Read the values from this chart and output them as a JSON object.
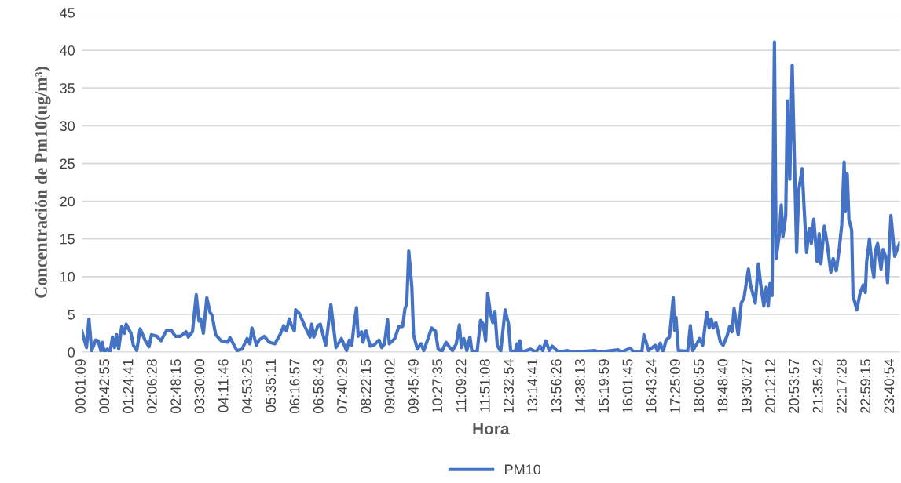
{
  "chart_data": {
    "type": "line",
    "xlabel": "Hora",
    "ylabel": "Concentración de Pm10(ug/m³)",
    "legend": "bottom",
    "grid": "y",
    "marker": "none",
    "line_style": "solid",
    "xlim": [
      0.0192,
      23.96
    ],
    "ylim": [
      0,
      45
    ],
    "yticks": [
      0,
      5,
      10,
      15,
      20,
      25,
      30,
      35,
      40,
      45
    ],
    "xticks": [
      {
        "value": 0.0192,
        "label": "00:01:09"
      },
      {
        "value": 0.7153,
        "label": "00:42:55"
      },
      {
        "value": 1.4114,
        "label": "01:24:41"
      },
      {
        "value": 2.1078,
        "label": "02:06:28"
      },
      {
        "value": 2.8042,
        "label": "02:48:15"
      },
      {
        "value": 3.5,
        "label": "03:30:00"
      },
      {
        "value": 4.1961,
        "label": "04:11:46"
      },
      {
        "value": 4.8903,
        "label": "04:53:25"
      },
      {
        "value": 5.5864,
        "label": "05:35:11"
      },
      {
        "value": 6.2825,
        "label": "06:16:57"
      },
      {
        "value": 6.9786,
        "label": "06:58:43"
      },
      {
        "value": 7.6747,
        "label": "07:40:29"
      },
      {
        "value": 8.3708,
        "label": "08:22:15"
      },
      {
        "value": 9.0672,
        "label": "09:04:02"
      },
      {
        "value": 9.7636,
        "label": "09:45:49"
      },
      {
        "value": 10.4597,
        "label": "10:27:35"
      },
      {
        "value": 11.1561,
        "label": "11:09:22"
      },
      {
        "value": 11.8522,
        "label": "11:51:08"
      },
      {
        "value": 12.5483,
        "label": "12:32:54"
      },
      {
        "value": 13.2447,
        "label": "13:14:41"
      },
      {
        "value": 13.9406,
        "label": "13:56:26"
      },
      {
        "value": 14.6369,
        "label": "14:38:13"
      },
      {
        "value": 15.3331,
        "label": "15:19:59"
      },
      {
        "value": 16.0292,
        "label": "16:01:45"
      },
      {
        "value": 16.7233,
        "label": "16:43:24"
      },
      {
        "value": 17.4192,
        "label": "17:25:09"
      },
      {
        "value": 18.1153,
        "label": "18:06:55"
      },
      {
        "value": 18.8111,
        "label": "18:48:40"
      },
      {
        "value": 19.5075,
        "label": "19:30:27"
      },
      {
        "value": 20.2033,
        "label": "20:12:12"
      },
      {
        "value": 20.8992,
        "label": "20:53:57"
      },
      {
        "value": 21.595,
        "label": "21:35:42"
      },
      {
        "value": 22.2911,
        "label": "22:17:28"
      },
      {
        "value": 22.9875,
        "label": "22:59:15"
      },
      {
        "value": 23.6817,
        "label": "23:40:54"
      }
    ],
    "series": [
      {
        "name": "PM10",
        "color": "#4472c4",
        "x": [
          0.02,
          0.16,
          0.23,
          0.31,
          0.43,
          0.5,
          0.58,
          0.62,
          0.68,
          0.77,
          0.85,
          0.92,
          0.98,
          1.04,
          1.1,
          1.19,
          1.27,
          1.32,
          1.46,
          1.53,
          1.63,
          1.73,
          1.88,
          1.99,
          2.06,
          2.22,
          2.34,
          2.49,
          2.64,
          2.76,
          2.91,
          3.07,
          3.14,
          3.26,
          3.37,
          3.45,
          3.5,
          3.58,
          3.68,
          3.77,
          3.83,
          3.94,
          4.1,
          4.29,
          4.36,
          4.56,
          4.71,
          4.86,
          4.94,
          5.0,
          5.13,
          5.21,
          5.36,
          5.51,
          5.67,
          5.82,
          5.93,
          6.01,
          6.09,
          6.16,
          6.24,
          6.28,
          6.39,
          6.54,
          6.7,
          6.75,
          6.81,
          6.93,
          7.0,
          7.16,
          7.31,
          7.46,
          7.62,
          7.77,
          7.85,
          7.92,
          8.0,
          8.06,
          8.11,
          8.21,
          8.25,
          8.34,
          8.46,
          8.57,
          8.72,
          8.8,
          8.88,
          8.97,
          9.02,
          9.18,
          9.3,
          9.41,
          9.48,
          9.53,
          9.59,
          9.68,
          9.73,
          9.84,
          9.95,
          10.03,
          10.1,
          10.26,
          10.37,
          10.45,
          10.56,
          10.68,
          10.79,
          10.87,
          10.98,
          11.07,
          11.13,
          11.2,
          11.29,
          11.38,
          11.44,
          11.59,
          11.69,
          11.77,
          11.84,
          11.9,
          11.98,
          12.05,
          12.11,
          12.18,
          12.28,
          12.41,
          12.51,
          12.57,
          12.7,
          12.76,
          12.8,
          12.84,
          12.89,
          13.16,
          13.31,
          13.43,
          13.51,
          13.6,
          13.7,
          13.79,
          13.97,
          14.23,
          14.39,
          15.04,
          15.15,
          15.53,
          15.72,
          15.8,
          16.07,
          16.18,
          16.41,
          16.47,
          16.61,
          16.8,
          16.87,
          16.95,
          17.03,
          17.12,
          17.22,
          17.33,
          17.37,
          17.41,
          17.48,
          17.75,
          17.83,
          17.9,
          18.02,
          18.1,
          18.19,
          18.31,
          18.38,
          18.44,
          18.5,
          18.58,
          18.71,
          18.79,
          18.9,
          18.98,
          19.05,
          19.11,
          19.23,
          19.32,
          19.4,
          19.53,
          19.59,
          19.73,
          19.82,
          19.89,
          19.98,
          20.05,
          20.11,
          20.16,
          20.22,
          20.29,
          20.34,
          20.43,
          20.49,
          20.54,
          20.62,
          20.67,
          20.74,
          20.81,
          20.94,
          21.0,
          21.1,
          21.16,
          21.23,
          21.31,
          21.37,
          21.44,
          21.54,
          21.6,
          21.65,
          21.75,
          21.84,
          21.94,
          22.01,
          22.1,
          22.19,
          22.26,
          22.33,
          22.36,
          22.42,
          22.47,
          22.55,
          22.59,
          22.7,
          22.8,
          22.89,
          22.95,
          22.99,
          23.07,
          23.15,
          23.2,
          23.24,
          23.31,
          23.41,
          23.47,
          23.54,
          23.6,
          23.7,
          23.81,
          23.95
        ],
        "values": [
          2.8,
          0.6,
          4.4,
          0.2,
          1.6,
          1.5,
          0.2,
          1.3,
          0,
          0.4,
          0,
          2.0,
          0.6,
          2.3,
          0.4,
          3.4,
          2.5,
          3.7,
          2.5,
          0.9,
          0.2,
          3.1,
          1.5,
          0.7,
          2.3,
          2.1,
          1.5,
          2.8,
          2.9,
          2.1,
          2.1,
          2.7,
          2.0,
          2.7,
          7.6,
          4.1,
          4.4,
          2.5,
          7.2,
          5.3,
          4.9,
          2.3,
          1.5,
          1.3,
          1.9,
          0.2,
          0.4,
          1.8,
          1.1,
          3.2,
          0.9,
          1.6,
          2.1,
          1.3,
          1.1,
          2.3,
          3.5,
          2.8,
          4.4,
          3.5,
          2.8,
          5.6,
          5.1,
          3.5,
          2.0,
          3.7,
          2.0,
          3.5,
          3.7,
          0.9,
          6.3,
          0.6,
          1.8,
          0.2,
          1.6,
          0.9,
          4.1,
          5.9,
          2.1,
          2.7,
          1.3,
          2.8,
          0.8,
          0.9,
          1.6,
          0.6,
          1.1,
          4.3,
          1.1,
          1.8,
          3.4,
          3.4,
          5.8,
          6.3,
          13.4,
          8.6,
          2.3,
          0.4,
          1.1,
          0.2,
          1.1,
          3.2,
          2.8,
          0.4,
          0.1,
          1.3,
          0.6,
          0.2,
          1.1,
          3.6,
          0.6,
          1.8,
          0.2,
          2.0,
          0,
          0,
          4.2,
          3.7,
          1.5,
          7.8,
          5.1,
          3.9,
          5.4,
          0.9,
          0.1,
          5.6,
          3.7,
          0.2,
          0,
          1.1,
          0,
          1.5,
          0,
          0.4,
          0,
          0.8,
          0.2,
          1.5,
          0.2,
          0.8,
          0,
          0.2,
          0,
          0.2,
          0,
          0.2,
          0.3,
          0,
          0.5,
          0,
          0,
          2.3,
          0.2,
          0.9,
          0.1,
          1.2,
          0,
          1.6,
          2.0,
          7.2,
          2.9,
          4.6,
          0.2,
          0.1,
          3.5,
          0.2,
          1.1,
          1.8,
          0.9,
          5.3,
          3.2,
          4.4,
          3.2,
          3.9,
          1.3,
          0.9,
          2.1,
          3.4,
          2.7,
          5.8,
          2.3,
          6.5,
          7.2,
          11.0,
          8.9,
          6.5,
          11.7,
          8.9,
          6.1,
          8.6,
          6.1,
          9.1,
          7.5,
          41.1,
          12.4,
          15.5,
          19.5,
          15.3,
          18.1,
          33.3,
          22.9,
          38.0,
          13.2,
          21.4,
          24.3,
          19.0,
          13.2,
          16.4,
          14.4,
          17.6,
          12.0,
          15.7,
          11.7,
          16.7,
          14.1,
          10.6,
          12.4,
          10.8,
          13.8,
          16.9,
          25.2,
          18.6,
          23.6,
          17.6,
          16.2,
          7.5,
          5.6,
          7.9,
          8.9,
          7.9,
          12.0,
          15.0,
          11.3,
          9.9,
          13.4,
          14.4,
          11.0,
          13.6,
          12.7,
          9.2,
          18.1,
          12.7,
          14.4
        ]
      }
    ]
  }
}
